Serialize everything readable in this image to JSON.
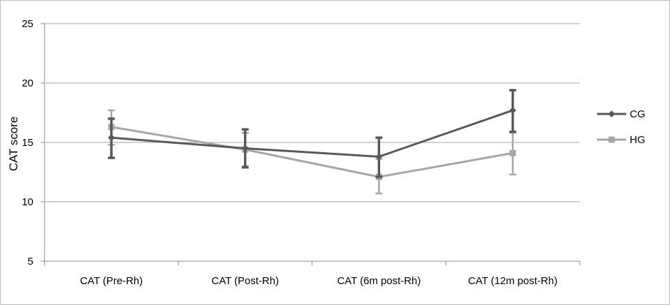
{
  "chart_data": {
    "type": "line",
    "title": "",
    "xlabel": "",
    "ylabel": "CAT score",
    "ylim": [
      5,
      25
    ],
    "yticks": [
      5,
      10,
      15,
      20,
      25
    ],
    "grid": true,
    "legend_position": "right",
    "categories": [
      "CAT   (Pre-Rh)",
      "CAT   (Post-Rh)",
      "CAT   (6m post-Rh)",
      "CAT   (12m post-Rh)"
    ],
    "series": [
      {
        "name": "CG",
        "marker": "diamond",
        "color": "#595959",
        "values": [
          15.4,
          14.5,
          13.8,
          17.7
        ],
        "err_low": [
          13.7,
          12.9,
          12.1,
          15.9
        ],
        "err_high": [
          17.0,
          16.1,
          15.4,
          19.4
        ]
      },
      {
        "name": "HG",
        "marker": "square",
        "color": "#a6a6a6",
        "values": [
          16.3,
          14.4,
          12.1,
          14.1
        ],
        "err_low": [
          14.8,
          13.0,
          10.7,
          12.3
        ],
        "err_high": [
          17.7,
          15.8,
          13.6,
          15.8
        ]
      }
    ]
  }
}
